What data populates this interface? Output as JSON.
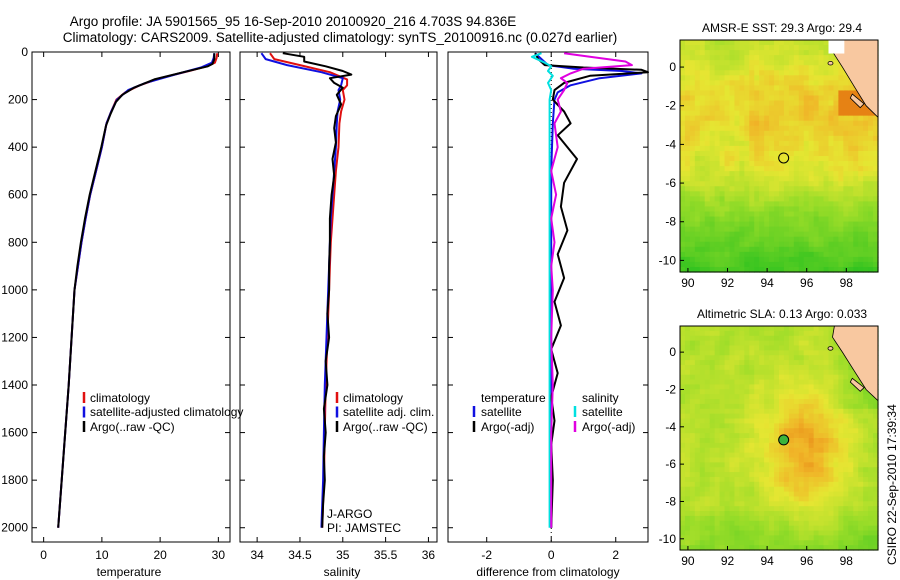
{
  "title": {
    "line1": "Argo profile: JA 5901565_95 16-Sep-2010 20100920_216 4.703S 94.836E",
    "line2": "Climatology: CARS2009. Satellite-adjusted climatology: synTS_20100916.nc (0.027d earlier)"
  },
  "colors": {
    "climatology": "#e01010",
    "satellite": "#1010e0",
    "argo": "#000000",
    "salinity_satellite": "#00e0e0",
    "salinity_argo": "#e000e0",
    "land": "#f8c8a0"
  },
  "chart_data": [
    {
      "id": "temperature",
      "type": "line",
      "xlabel": "temperature",
      "ylabel": "",
      "xlim": [
        -2,
        32
      ],
      "ylim": [
        2060,
        0
      ],
      "xticks": [
        0,
        10,
        20,
        30
      ],
      "yticks": [
        0,
        200,
        400,
        600,
        800,
        1000,
        1200,
        1400,
        1600,
        1800,
        2000
      ],
      "legend": [
        "climatology",
        "satellite-adjusted climatology",
        "Argo(..raw -QC)"
      ],
      "series": [
        {
          "name": "climatology",
          "color": "#e01010",
          "points": [
            [
              29.8,
              5
            ],
            [
              29.7,
              25
            ],
            [
              29.4,
              45
            ],
            [
              28.0,
              60
            ],
            [
              25.0,
              80
            ],
            [
              20.0,
              110
            ],
            [
              16.5,
              140
            ],
            [
              14.0,
              170
            ],
            [
              12.5,
              200
            ],
            [
              11.6,
              250
            ],
            [
              10.8,
              300
            ],
            [
              10.0,
              400
            ],
            [
              9.0,
              500
            ],
            [
              8.0,
              600
            ],
            [
              7.2,
              700
            ],
            [
              6.5,
              800
            ],
            [
              5.9,
              900
            ],
            [
              5.3,
              1000
            ],
            [
              4.8,
              1200
            ],
            [
              4.3,
              1400
            ],
            [
              3.7,
              1600
            ],
            [
              3.1,
              1800
            ],
            [
              2.5,
              2000
            ]
          ]
        },
        {
          "name": "satellite-adjusted climatology",
          "color": "#1010e0",
          "points": [
            [
              29.3,
              5
            ],
            [
              29.2,
              25
            ],
            [
              28.9,
              45
            ],
            [
              27.0,
              65
            ],
            [
              22.5,
              95
            ],
            [
              17.5,
              130
            ],
            [
              14.5,
              160
            ],
            [
              12.6,
              200
            ],
            [
              11.6,
              250
            ],
            [
              10.8,
              300
            ],
            [
              10.0,
              400
            ],
            [
              9.0,
              500
            ],
            [
              8.0,
              600
            ],
            [
              7.2,
              700
            ],
            [
              6.5,
              800
            ],
            [
              5.9,
              900
            ],
            [
              5.3,
              1000
            ],
            [
              4.8,
              1200
            ],
            [
              4.3,
              1400
            ],
            [
              3.7,
              1600
            ],
            [
              3.1,
              1800
            ],
            [
              2.5,
              2000
            ]
          ]
        },
        {
          "name": "Argo(..raw -QC)",
          "color": "#000000",
          "points": [
            [
              29.3,
              5
            ],
            [
              29.3,
              30
            ],
            [
              29.0,
              50
            ],
            [
              28.2,
              60
            ],
            [
              24.0,
              85
            ],
            [
              19.0,
              115
            ],
            [
              15.5,
              150
            ],
            [
              13.5,
              180
            ],
            [
              12.4,
              210
            ],
            [
              11.5,
              260
            ],
            [
              10.7,
              310
            ],
            [
              9.9,
              400
            ],
            [
              8.9,
              500
            ],
            [
              7.9,
              600
            ],
            [
              7.1,
              700
            ],
            [
              6.4,
              800
            ],
            [
              5.8,
              900
            ],
            [
              5.3,
              1000
            ],
            [
              4.8,
              1200
            ],
            [
              4.3,
              1400
            ],
            [
              3.7,
              1600
            ],
            [
              3.1,
              1800
            ],
            [
              2.5,
              2000
            ]
          ]
        }
      ]
    },
    {
      "id": "salinity",
      "type": "line",
      "xlabel": "salinity",
      "xlim": [
        33.8,
        36.1
      ],
      "ylim": [
        2060,
        0
      ],
      "xticks": [
        34,
        34.5,
        35,
        35.5,
        36
      ],
      "legend": [
        "climatology",
        "satellite adj. clim.",
        "Argo(..raw -QC)"
      ],
      "annotations": [
        "J-ARGO",
        "PI: JAMSTEC"
      ],
      "series": [
        {
          "name": "climatology",
          "color": "#e01010",
          "points": [
            [
              34.15,
              5
            ],
            [
              34.2,
              30
            ],
            [
              34.5,
              55
            ],
            [
              34.85,
              85
            ],
            [
              35.05,
              115
            ],
            [
              35.05,
              140
            ],
            [
              35.0,
              160
            ],
            [
              35.02,
              200
            ],
            [
              34.98,
              250
            ],
            [
              34.96,
              300
            ],
            [
              34.95,
              400
            ],
            [
              34.92,
              500
            ],
            [
              34.9,
              600
            ],
            [
              34.88,
              700
            ],
            [
              34.86,
              800
            ],
            [
              34.85,
              900
            ],
            [
              34.84,
              1000
            ],
            [
              34.82,
              1200
            ],
            [
              34.8,
              1400
            ],
            [
              34.79,
              1600
            ],
            [
              34.78,
              1800
            ],
            [
              34.76,
              2000
            ]
          ]
        },
        {
          "name": "satellite adj. clim.",
          "color": "#1010e0",
          "points": [
            [
              34.05,
              5
            ],
            [
              34.1,
              30
            ],
            [
              34.35,
              55
            ],
            [
              34.75,
              85
            ],
            [
              35.0,
              110
            ],
            [
              34.98,
              140
            ],
            [
              34.95,
              160
            ],
            [
              34.97,
              200
            ],
            [
              34.94,
              250
            ],
            [
              34.93,
              300
            ],
            [
              34.92,
              400
            ],
            [
              34.9,
              500
            ],
            [
              34.88,
              600
            ],
            [
              34.86,
              700
            ],
            [
              34.85,
              800
            ],
            [
              34.84,
              900
            ],
            [
              34.83,
              1000
            ],
            [
              34.81,
              1200
            ],
            [
              34.79,
              1400
            ],
            [
              34.78,
              1600
            ],
            [
              34.77,
              1800
            ],
            [
              34.75,
              2000
            ]
          ]
        },
        {
          "name": "Argo(..raw -QC)",
          "color": "#000000",
          "points": [
            [
              34.3,
              5
            ],
            [
              34.55,
              20
            ],
            [
              34.55,
              40
            ],
            [
              34.8,
              60
            ],
            [
              35.0,
              80
            ],
            [
              35.1,
              95
            ],
            [
              34.85,
              110
            ],
            [
              34.9,
              130
            ],
            [
              35.0,
              150
            ],
            [
              34.93,
              180
            ],
            [
              34.98,
              220
            ],
            [
              34.92,
              270
            ],
            [
              34.9,
              320
            ],
            [
              34.92,
              380
            ],
            [
              34.88,
              450
            ],
            [
              34.9,
              520
            ],
            [
              34.87,
              600
            ],
            [
              34.85,
              700
            ],
            [
              34.85,
              800
            ],
            [
              34.84,
              900
            ],
            [
              34.84,
              1000
            ],
            [
              34.82,
              1100
            ],
            [
              34.84,
              1200
            ],
            [
              34.8,
              1300
            ],
            [
              34.82,
              1400
            ],
            [
              34.78,
              1500
            ],
            [
              34.8,
              1600
            ],
            [
              34.78,
              1700
            ],
            [
              34.79,
              1800
            ],
            [
              34.77,
              1900
            ],
            [
              34.76,
              2000
            ]
          ]
        }
      ]
    },
    {
      "id": "difference",
      "type": "line",
      "xlabel": "difference from climatology",
      "xlim": [
        -3.2,
        3.0
      ],
      "ylim": [
        2060,
        0
      ],
      "xticks": [
        -2,
        0,
        2
      ],
      "legend_left_title": "temperature",
      "legend_right_title": "salinity",
      "legend_left": [
        "satellite",
        "Argo(-adj)"
      ],
      "legend_right": [
        "satellite",
        "Argo(-adj)"
      ],
      "series": [
        {
          "name": "temperature satellite",
          "color": "#1010e0",
          "points": [
            [
              -0.5,
              5
            ],
            [
              -0.3,
              30
            ],
            [
              -0.1,
              55
            ],
            [
              0.7,
              70
            ],
            [
              2.2,
              80
            ],
            [
              2.8,
              90
            ],
            [
              1.5,
              110
            ],
            [
              0.6,
              140
            ],
            [
              0.2,
              170
            ],
            [
              0.1,
              200
            ],
            [
              0.05,
              300
            ],
            [
              0.0,
              500
            ],
            [
              0.0,
              800
            ],
            [
              0.0,
              1200
            ],
            [
              0.0,
              1600
            ],
            [
              0.0,
              2000
            ]
          ]
        },
        {
          "name": "temperature Argo(-adj)",
          "color": "#000000",
          "points": [
            [
              -0.5,
              5
            ],
            [
              -0.4,
              30
            ],
            [
              -0.2,
              55
            ],
            [
              1.0,
              65
            ],
            [
              2.8,
              75
            ],
            [
              3.0,
              85
            ],
            [
              1.2,
              100
            ],
            [
              0.4,
              130
            ],
            [
              0.1,
              160
            ],
            [
              0.05,
              200
            ],
            [
              0.4,
              250
            ],
            [
              0.6,
              300
            ],
            [
              0.2,
              350
            ],
            [
              0.8,
              450
            ],
            [
              0.4,
              550
            ],
            [
              0.3,
              650
            ],
            [
              0.5,
              750
            ],
            [
              0.2,
              850
            ],
            [
              0.4,
              950
            ],
            [
              0.1,
              1050
            ],
            [
              0.3,
              1150
            ],
            [
              0.0,
              1250
            ],
            [
              0.2,
              1350
            ],
            [
              0.0,
              1450
            ],
            [
              0.1,
              1550
            ],
            [
              0.0,
              1650
            ],
            [
              0.05,
              1800
            ],
            [
              0.0,
              2000
            ]
          ]
        },
        {
          "name": "salinity satellite",
          "color": "#00e0e0",
          "points": [
            [
              -0.3,
              5
            ],
            [
              -0.6,
              20
            ],
            [
              -0.2,
              45
            ],
            [
              0.0,
              60
            ],
            [
              -0.1,
              80
            ],
            [
              0.05,
              100
            ],
            [
              -0.1,
              130
            ],
            [
              0.0,
              160
            ],
            [
              -0.05,
              200
            ],
            [
              -0.05,
              300
            ],
            [
              -0.05,
              500
            ],
            [
              -0.05,
              800
            ],
            [
              -0.05,
              1200
            ],
            [
              -0.05,
              1600
            ],
            [
              -0.05,
              2000
            ]
          ]
        },
        {
          "name": "salinity Argo(-adj)",
          "color": "#e000e0",
          "points": [
            [
              0.4,
              5
            ],
            [
              1.2,
              20
            ],
            [
              2.3,
              40
            ],
            [
              2.5,
              55
            ],
            [
              1.0,
              70
            ],
            [
              0.6,
              90
            ],
            [
              0.3,
              110
            ],
            [
              0.5,
              130
            ],
            [
              0.4,
              160
            ],
            [
              0.2,
              200
            ],
            [
              0.3,
              250
            ],
            [
              0.1,
              300
            ],
            [
              0.2,
              400
            ],
            [
              0.0,
              500
            ],
            [
              0.15,
              600
            ],
            [
              0.0,
              700
            ],
            [
              0.1,
              800
            ],
            [
              0.0,
              900
            ],
            [
              0.05,
              1000
            ],
            [
              0.0,
              1200
            ],
            [
              0.05,
              1400
            ],
            [
              0.0,
              1600
            ],
            [
              0.0,
              1800
            ],
            [
              0.0,
              2000
            ]
          ]
        }
      ]
    },
    {
      "id": "sst_map",
      "type": "heatmap",
      "title": "AMSR-E SST: 29.3 Argo: 29.4",
      "xlim": [
        89.6,
        99.6
      ],
      "ylim": [
        -10.6,
        1.4
      ],
      "xticks": [
        90,
        92,
        94,
        96,
        98
      ],
      "yticks": [
        0,
        -2,
        -4,
        -6,
        -8,
        -10
      ],
      "marker": {
        "lon": 94.836,
        "lat": -4.703
      }
    },
    {
      "id": "sla_map",
      "type": "heatmap",
      "title": "Altimetric SLA: 0.13 Argo: 0.033",
      "xlim": [
        89.6,
        99.6
      ],
      "ylim": [
        -10.6,
        1.4
      ],
      "xticks": [
        90,
        92,
        94,
        96,
        98
      ],
      "yticks": [
        0,
        -2,
        -4,
        -6,
        -8,
        -10
      ],
      "marker": {
        "lon": 94.836,
        "lat": -4.703
      }
    }
  ],
  "footer": {
    "credit": "CSIRO 22-Sep-2010 17:39:34"
  }
}
